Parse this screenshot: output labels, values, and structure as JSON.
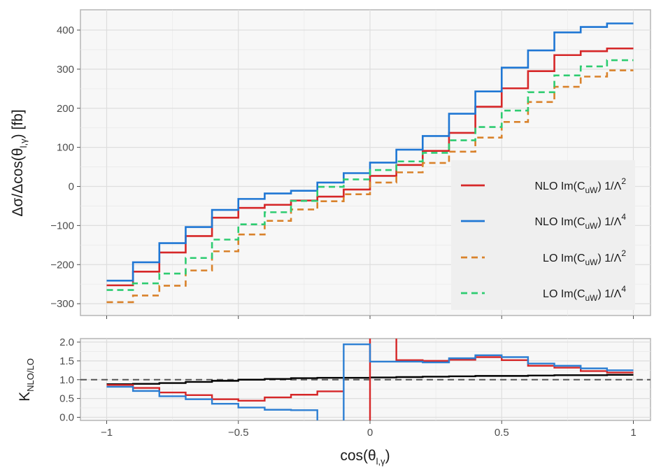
{
  "chart_data": [
    {
      "type": "line",
      "panel": "top",
      "ylabel": "Δσ/Δcos(θl,γ) [fb]",
      "ylabel_parts": {
        "main": "Δσ/Δcos(θ",
        "sub": "l,γ",
        "end": ") [fb]"
      },
      "xlim": [
        -1,
        1
      ],
      "ylim": [
        -315,
        440
      ],
      "xticks": [
        -1,
        -0.5,
        0,
        0.5,
        1
      ],
      "xtick_labels": [
        "",
        "",
        "",
        "",
        ""
      ],
      "yticks": [
        -300,
        -200,
        -100,
        0,
        100,
        200,
        300,
        400
      ],
      "ytick_labels": [
        "−300",
        "−200",
        "−100",
        "0",
        "100",
        "200",
        "300",
        "400"
      ],
      "grid": true,
      "legend_position": "bottom-right",
      "bin_edges": [
        -1,
        -0.9,
        -0.8,
        -0.7,
        -0.6,
        -0.5,
        -0.4,
        -0.3,
        -0.2,
        -0.1,
        0,
        0.1,
        0.2,
        0.3,
        0.4,
        0.5,
        0.6,
        0.7,
        0.8,
        0.9,
        1
      ],
      "series": [
        {
          "name": "NLO Im(CuW) 1/Λ2",
          "label": {
            "pre": "NLO Im(C",
            "sub": "uW",
            "mid": ") 1/Λ",
            "sup": "2"
          },
          "color": "#d62728",
          "dash": "solid",
          "values": [
            -253,
            -218,
            -169,
            -127,
            -80,
            -55,
            -47,
            -36,
            -26,
            -8,
            27,
            55,
            91,
            137,
            204,
            251,
            295,
            336,
            346,
            353
          ]
        },
        {
          "name": "NLO Im(CuW) 1/Λ4",
          "label": {
            "pre": "NLO Im(C",
            "sub": "uW",
            "mid": ") 1/Λ",
            "sup": "4"
          },
          "color": "#1f77d4",
          "dash": "solid",
          "values": [
            -241,
            -194,
            -145,
            -104,
            -60,
            -32,
            -18,
            -11,
            10,
            34,
            61,
            94,
            129,
            186,
            243,
            304,
            348,
            394,
            408,
            417
          ]
        },
        {
          "name": "LO Im(CuW) 1/Λ2",
          "label": {
            "pre": "LO Im(C",
            "sub": "uW",
            "mid": ") 1/Λ",
            "sup": "2"
          },
          "color": "#d9822b",
          "dash": "dashed",
          "values": [
            -296,
            -279,
            -254,
            -215,
            -166,
            -123,
            -88,
            -59,
            -38,
            -20,
            10,
            36,
            60,
            89,
            125,
            165,
            216,
            255,
            281,
            297
          ]
        },
        {
          "name": "LO Im(CuW) 1/Λ4",
          "label": {
            "pre": "LO Im(C",
            "sub": "uW",
            "mid": ") 1/Λ",
            "sup": "4"
          },
          "color": "#2ecc71",
          "dash": "dashed",
          "values": [
            -265,
            -248,
            -223,
            -183,
            -136,
            -97,
            -66,
            -37,
            -1,
            18,
            42,
            64,
            86,
            118,
            152,
            194,
            241,
            284,
            307,
            323
          ]
        }
      ]
    },
    {
      "type": "line",
      "panel": "bottom",
      "ylabel": "KNLO/LO",
      "ylabel_parts": {
        "main": "K",
        "sub": "NLO/LO"
      },
      "xlabel": "cos(θl,γ)",
      "xlabel_parts": {
        "main": "cos(θ",
        "sub": "l,γ",
        "end": ")"
      },
      "xlim": [
        -1,
        1
      ],
      "ylim": [
        -0.05,
        2.15
      ],
      "xticks": [
        -1,
        -0.5,
        0,
        0.5,
        1
      ],
      "xtick_labels": [
        "−1",
        "−0.5",
        "0",
        "0.5",
        "1"
      ],
      "yticks": [
        0,
        0.5,
        1,
        1.5,
        2
      ],
      "ytick_labels": [
        "0.0",
        "0.5",
        "1.0",
        "1.5",
        "2.0"
      ],
      "reference_line": {
        "y": 1.0,
        "dash": "dashed",
        "color": "#555555"
      },
      "bin_edges": [
        -1,
        -0.9,
        -0.8,
        -0.7,
        -0.6,
        -0.5,
        -0.4,
        -0.3,
        -0.2,
        -0.1,
        0,
        0.1,
        0.2,
        0.3,
        0.4,
        0.5,
        0.6,
        0.7,
        0.8,
        0.9,
        1
      ],
      "series": [
        {
          "color": "#000000",
          "values": [
            0.88,
            0.89,
            0.91,
            0.94,
            0.97,
            1.0,
            1.02,
            1.04,
            1.05,
            1.05,
            1.06,
            1.07,
            1.08,
            1.09,
            1.1,
            1.1,
            1.11,
            1.12,
            1.12,
            1.13
          ]
        },
        {
          "color": "#d62728",
          "values": [
            0.86,
            0.78,
            0.66,
            0.59,
            0.48,
            0.44,
            0.53,
            0.6,
            0.69,
            -0.3,
            2.7,
            1.52,
            1.5,
            1.53,
            1.6,
            1.52,
            1.37,
            1.32,
            1.23,
            1.19
          ],
          "gap_after_index": 8
        },
        {
          "color": "#2d7fd3",
          "values": [
            0.81,
            0.7,
            0.56,
            0.48,
            0.36,
            0.26,
            0.2,
            0.19,
            -0.5,
            1.94,
            1.48,
            1.48,
            1.46,
            1.57,
            1.65,
            1.6,
            1.43,
            1.37,
            1.3,
            1.25
          ]
        }
      ]
    }
  ]
}
